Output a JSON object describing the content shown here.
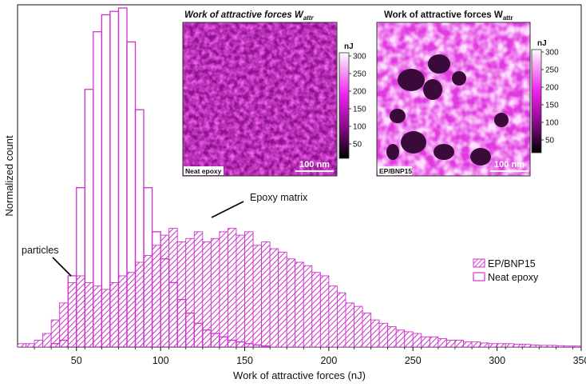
{
  "chart_data": {
    "type": "bar",
    "subtype": "histogram",
    "xlabel": "Work of attractive forces (nJ)",
    "ylabel": "Normalized count",
    "xlim": [
      15,
      350
    ],
    "ylim": [
      0,
      1.0
    ],
    "xticks": [
      50,
      100,
      150,
      200,
      250,
      300,
      350
    ],
    "bin_width": 5,
    "series": [
      {
        "name": "EP/BNP15",
        "style": "hatched",
        "color": "#cc33cc",
        "bin_starts": [
          15,
          20,
          25,
          30,
          35,
          40,
          45,
          50,
          55,
          60,
          65,
          70,
          75,
          80,
          85,
          90,
          95,
          100,
          105,
          110,
          115,
          120,
          125,
          130,
          135,
          140,
          145,
          150,
          155,
          160,
          165,
          170,
          175,
          180,
          185,
          190,
          195,
          200,
          205,
          210,
          215,
          220,
          225,
          230,
          235,
          240,
          245,
          250,
          255,
          260,
          265,
          270,
          275,
          280,
          285,
          290,
          295,
          300,
          305,
          310,
          315,
          320,
          325,
          330,
          335,
          340,
          345
        ],
        "values": [
          0.01,
          0.01,
          0.02,
          0.04,
          0.08,
          0.13,
          0.19,
          0.21,
          0.19,
          0.18,
          0.17,
          0.19,
          0.21,
          0.22,
          0.25,
          0.27,
          0.3,
          0.33,
          0.35,
          0.31,
          0.32,
          0.34,
          0.31,
          0.32,
          0.34,
          0.35,
          0.33,
          0.34,
          0.3,
          0.31,
          0.29,
          0.28,
          0.26,
          0.25,
          0.24,
          0.22,
          0.21,
          0.18,
          0.16,
          0.13,
          0.12,
          0.1,
          0.08,
          0.07,
          0.06,
          0.05,
          0.045,
          0.04,
          0.03,
          0.03,
          0.025,
          0.02,
          0.02,
          0.015,
          0.015,
          0.012,
          0.01,
          0.01,
          0.01,
          0.008,
          0.008,
          0.006,
          0.005,
          0.005,
          0.004,
          0.003,
          0.003
        ]
      },
      {
        "name": "Neat epoxy",
        "style": "outline",
        "color": "#cc33cc",
        "bin_starts": [
          35,
          40,
          45,
          50,
          55,
          60,
          65,
          70,
          75,
          80,
          85,
          90,
          95,
          100,
          105,
          110,
          115,
          120,
          125,
          130,
          135,
          140,
          145,
          150,
          155,
          160
        ],
        "values": [
          0.01,
          0.02,
          0.21,
          0.47,
          0.76,
          0.93,
          0.98,
          0.99,
          1.0,
          0.9,
          0.7,
          0.47,
          0.34,
          0.26,
          0.19,
          0.14,
          0.1,
          0.07,
          0.05,
          0.04,
          0.03,
          0.02,
          0.015,
          0.01,
          0.006,
          0.003
        ]
      }
    ],
    "legend": {
      "position": "right",
      "entries": [
        "EP/BNP15",
        "Neat epoxy"
      ]
    },
    "annotations": [
      {
        "text": "Epoxy matrix",
        "points_to_x": 130
      },
      {
        "text": "particles",
        "points_to_x": 48
      }
    ]
  },
  "insets": [
    {
      "title": "Work of attractive forces W",
      "title_sub": "attr",
      "image_label": "Neat epoxy",
      "scalebar": "100 nm",
      "colorbar_unit": "nJ",
      "colorbar_ticks": [
        "300",
        "250",
        "200",
        "150",
        "100",
        "50"
      ]
    },
    {
      "title": "Work of attractive forces W",
      "title_sub": "attr",
      "image_label": "EP/BNP15",
      "scalebar": "100 nm",
      "colorbar_unit": "nJ",
      "colorbar_ticks": [
        "300",
        "250",
        "200",
        "150",
        "100",
        "50"
      ]
    }
  ]
}
